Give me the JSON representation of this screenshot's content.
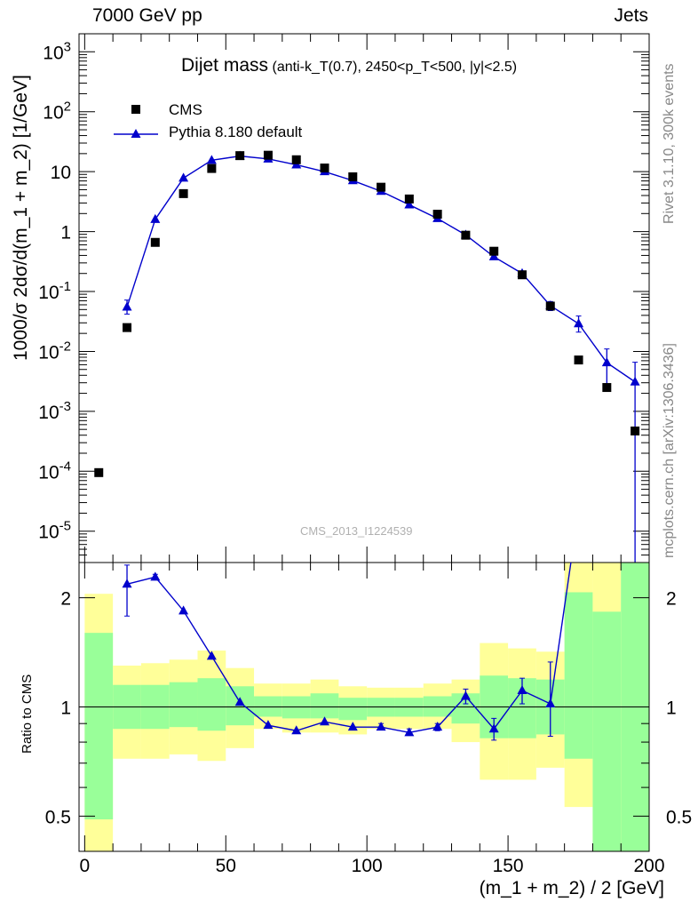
{
  "header": {
    "left": "7000 GeV pp",
    "right": "Jets"
  },
  "title": {
    "main": "Dijet mass",
    "sub": "(anti-k_T(0.7), 2450<p_T<500, |y|<2.5)"
  },
  "side_text": {
    "rivet": "Rivet 3.1.10,  300k events",
    "mcplots": "mcplots.cern.ch [arXiv:1306.3436]"
  },
  "watermark": "CMS_2013_I1224539",
  "chart_data": [
    {
      "type": "scatter",
      "ylabel": "1000/σ 2dσ/d(m_1 + m_2) [1/GeV]",
      "xlabel": "",
      "yscale": "log",
      "xlim": [
        -2,
        200
      ],
      "ylim": [
        3e-06,
        2000
      ],
      "yticks": [
        "10^3",
        "10^2",
        "10",
        "1",
        "10^-1",
        "10^-2",
        "10^-3",
        "10^-4",
        "10^-5"
      ],
      "legend_position": "top-left",
      "series": [
        {
          "name": "CMS",
          "marker": "square",
          "color": "#000000",
          "x": [
            5,
            15,
            25,
            35,
            45,
            55,
            65,
            75,
            85,
            95,
            105,
            115,
            125,
            135,
            145,
            155,
            165,
            175,
            185,
            195
          ],
          "y": [
            9.5e-05,
            0.025,
            0.66,
            4.3,
            11.3,
            18.5,
            18.8,
            15.8,
            11.5,
            8.2,
            5.5,
            3.5,
            1.95,
            0.87,
            0.47,
            0.19,
            0.057,
            0.0072,
            0.0025,
            0.00047
          ]
        },
        {
          "name": "Pythia 8.180 default",
          "marker": "triangle",
          "color": "#0000cc",
          "x": [
            15,
            25,
            35,
            45,
            55,
            65,
            75,
            85,
            95,
            105,
            115,
            125,
            135,
            145,
            155,
            165,
            175,
            185,
            195
          ],
          "y": [
            0.055,
            1.6,
            7.8,
            15.5,
            18.2,
            16.3,
            13.0,
            10.0,
            7.1,
            4.7,
            2.8,
            1.65,
            0.88,
            0.38,
            0.2,
            0.058,
            0.029,
            0.0065,
            0.0031
          ],
          "yerr_low": [
            0.042,
            1.6,
            7.8,
            15.5,
            18.2,
            16.3,
            13.0,
            10.0,
            7.1,
            4.7,
            2.8,
            1.65,
            0.88,
            0.38,
            0.2,
            0.048,
            0.021,
            0.0025,
            0.0
          ],
          "yerr_high": [
            0.072,
            1.6,
            7.8,
            15.5,
            18.2,
            16.3,
            13.0,
            10.0,
            7.1,
            4.7,
            2.8,
            1.65,
            0.88,
            0.38,
            0.2,
            0.068,
            0.039,
            0.011,
            0.0066
          ]
        }
      ]
    },
    {
      "type": "line",
      "ylabel": "Ratio to CMS",
      "xlabel": "(m_1 + m_2) / 2 [GeV]",
      "yscale": "log",
      "xlim": [
        -2,
        200
      ],
      "ylim": [
        0.4,
        2.5
      ],
      "yticks": [
        "0.5",
        "1",
        "2"
      ],
      "xticks": [
        "0",
        "50",
        "100",
        "150",
        "200"
      ],
      "reference_line": 1,
      "bands": {
        "bin_edges": [
          0,
          10,
          20,
          30,
          40,
          50,
          60,
          70,
          80,
          90,
          100,
          110,
          120,
          130,
          140,
          150,
          160,
          170,
          180,
          190,
          200
        ],
        "yellow_low": [
          0.3,
          0.72,
          0.72,
          0.74,
          0.71,
          0.77,
          0.87,
          0.85,
          0.85,
          0.84,
          0.87,
          0.87,
          0.87,
          0.8,
          0.63,
          0.63,
          0.68,
          0.53,
          0.3,
          0.3
        ],
        "yellow_high": [
          2.05,
          1.3,
          1.32,
          1.35,
          1.43,
          1.28,
          1.16,
          1.16,
          1.19,
          1.14,
          1.13,
          1.13,
          1.16,
          1.19,
          1.5,
          1.45,
          1.42,
          2.65,
          2.65,
          2.65
        ],
        "green_low": [
          0.49,
          0.87,
          0.87,
          0.88,
          0.86,
          0.89,
          0.94,
          0.93,
          0.93,
          0.92,
          0.94,
          0.94,
          0.94,
          0.9,
          0.82,
          0.82,
          0.84,
          0.72,
          0.3,
          0.3
        ],
        "green_high": [
          1.6,
          1.15,
          1.15,
          1.17,
          1.2,
          1.14,
          1.07,
          1.07,
          1.09,
          1.06,
          1.06,
          1.06,
          1.07,
          1.09,
          1.22,
          1.2,
          1.19,
          2.07,
          1.83,
          2.65
        ]
      },
      "series": [
        {
          "name": "Pythia 8.180 default",
          "color": "#0000cc",
          "x": [
            15,
            25,
            35,
            45,
            55,
            65,
            75,
            85,
            95,
            105,
            115,
            125,
            135,
            145,
            155,
            165,
            175
          ],
          "y": [
            2.18,
            2.28,
            1.84,
            1.38,
            1.03,
            0.89,
            0.86,
            0.91,
            0.88,
            0.88,
            0.85,
            0.88,
            1.07,
            0.87,
            1.11,
            1.02,
            3.5
          ],
          "yerr_low": [
            1.78,
            2.24,
            1.84,
            1.38,
            1.03,
            0.89,
            0.86,
            0.91,
            0.88,
            0.87,
            0.84,
            0.86,
            1.02,
            0.81,
            1.02,
            0.83,
            3.5
          ],
          "yerr_high": [
            2.46,
            2.32,
            1.84,
            1.38,
            1.03,
            0.89,
            0.86,
            0.91,
            0.88,
            0.9,
            0.87,
            0.9,
            1.12,
            0.93,
            1.2,
            1.33,
            3.5
          ]
        }
      ]
    }
  ]
}
